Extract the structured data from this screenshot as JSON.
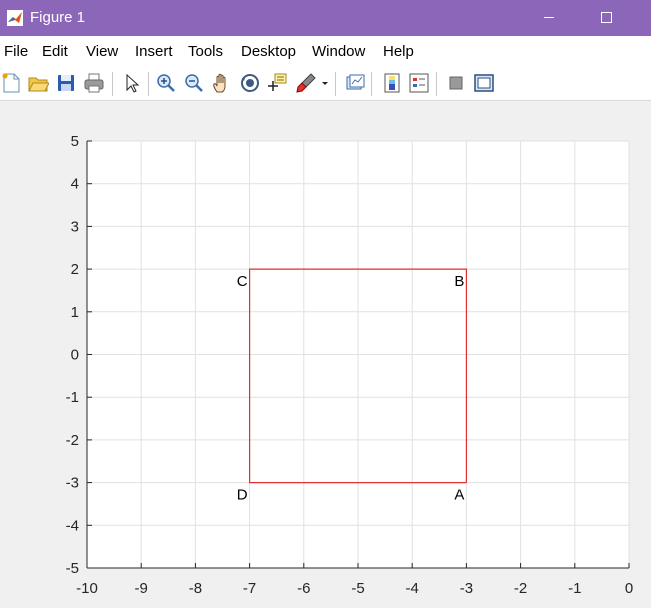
{
  "window": {
    "title": "Figure 1"
  },
  "menu": [
    "File",
    "Edit",
    "View",
    "Insert",
    "Tools",
    "Desktop",
    "Window",
    "Help"
  ],
  "toolbar": {
    "icons": [
      "new-figure-icon",
      "open-file-icon",
      "save-icon",
      "print-icon",
      "select-pointer-icon",
      "zoom-in-icon",
      "zoom-out-icon",
      "pan-hand-icon",
      "rotate-3d-icon",
      "data-cursor-icon",
      "brush-icon",
      "brush-dropdown-icon",
      "link-plot-icon",
      "colorbar-icon",
      "legend-icon",
      "hide-plot-tools-icon",
      "show-plot-tools-icon"
    ]
  },
  "chart_data": {
    "type": "line",
    "xlim": [
      -10,
      0
    ],
    "ylim": [
      -5,
      5
    ],
    "xticks": [
      -10,
      -9,
      -8,
      -7,
      -6,
      -5,
      -4,
      -3,
      -2,
      -1,
      0
    ],
    "yticks": [
      -5,
      -4,
      -3,
      -2,
      -1,
      0,
      1,
      2,
      3,
      4,
      5
    ],
    "xtick_labels": [
      "-10",
      "-9",
      "-8",
      "-7",
      "-6",
      "-5",
      "-4",
      "-3",
      "-2",
      "-1",
      "0"
    ],
    "ytick_labels": [
      "-5",
      "-4",
      "-3",
      "-2",
      "-1",
      "0",
      "1",
      "2",
      "3",
      "4",
      "5"
    ],
    "grid": true,
    "series": [
      {
        "x": [
          -3,
          -3,
          -7,
          -7,
          -3
        ],
        "y": [
          -3,
          2,
          2,
          -3,
          -3
        ],
        "color": "#e03030"
      }
    ],
    "annotations": [
      {
        "text": "A",
        "x": -3,
        "y": -3,
        "position": "below-left"
      },
      {
        "text": "B",
        "x": -3,
        "y": 2,
        "position": "below-left"
      },
      {
        "text": "C",
        "x": -7,
        "y": 2,
        "position": "below-left"
      },
      {
        "text": "D",
        "x": -7,
        "y": -3,
        "position": "below-left"
      }
    ]
  }
}
